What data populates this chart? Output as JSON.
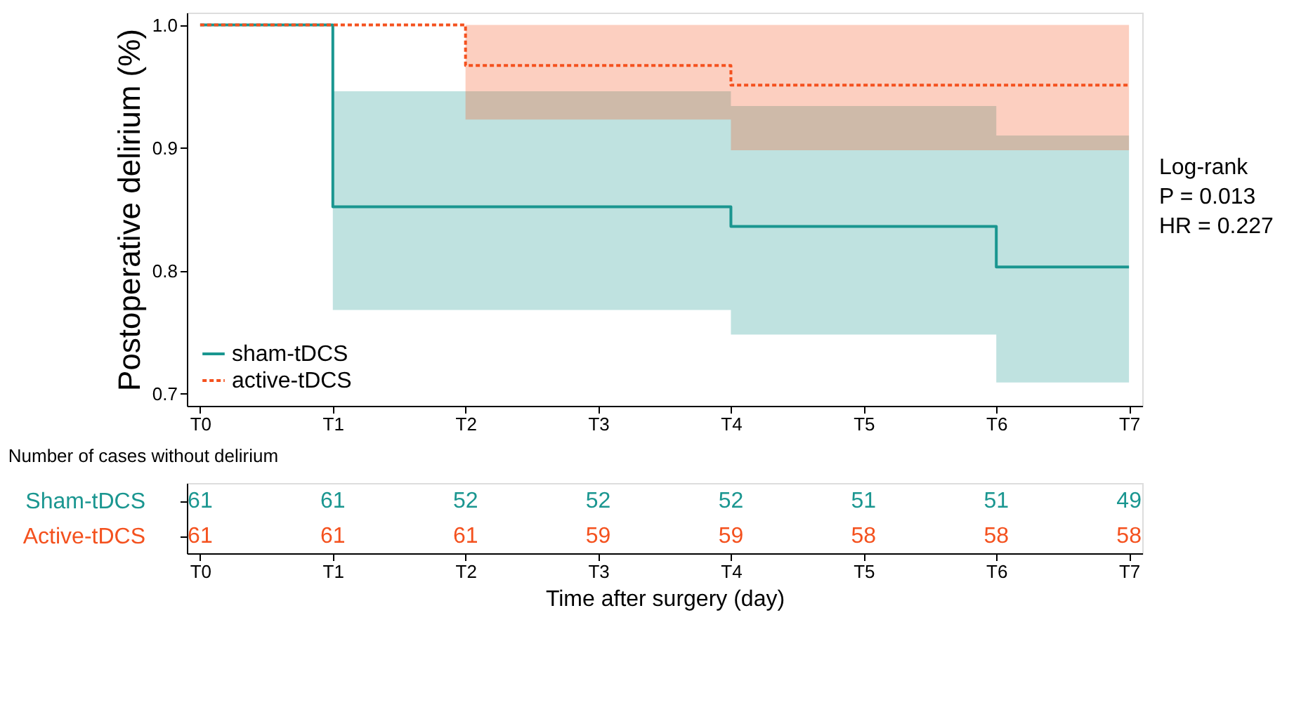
{
  "chart_data": [
    {
      "type": "step",
      "ylabel": "Postoperative delirium (%)",
      "categories": [
        "T0",
        "T1",
        "T2",
        "T3",
        "T4",
        "T5",
        "T6",
        "T7"
      ],
      "series": [
        {
          "name": "sham-tDCS",
          "color": "#1a9690",
          "line_style": "solid",
          "values": [
            1.0,
            0.852,
            0.852,
            0.852,
            0.836,
            0.836,
            0.803,
            0.803
          ],
          "lower": [
            1.0,
            0.768,
            0.768,
            0.768,
            0.748,
            0.748,
            0.709,
            0.709
          ],
          "upper": [
            1.0,
            0.946,
            0.946,
            0.946,
            0.934,
            0.934,
            0.91,
            0.91
          ]
        },
        {
          "name": "active-tDCS",
          "color": "#f4511e",
          "line_style": "dashed",
          "values": [
            1.0,
            1.0,
            0.967,
            0.967,
            0.951,
            0.951,
            0.951,
            0.951
          ],
          "lower": [
            1.0,
            1.0,
            0.923,
            0.923,
            0.898,
            0.898,
            0.898,
            0.898
          ],
          "upper": [
            1.0,
            1.0,
            1.0,
            1.0,
            1.0,
            1.0,
            1.0,
            1.0
          ]
        }
      ],
      "ylim": [
        0.69,
        1.01
      ],
      "yticks": [
        {
          "value": 0.7,
          "label": "0.7"
        },
        {
          "value": 0.8,
          "label": "0.8"
        },
        {
          "value": 0.9,
          "label": "0.9"
        },
        {
          "value": 1.0,
          "label": "1.0"
        }
      ],
      "annotations": [
        "Log-rank",
        "P = 0.013",
        "HR = 0.227"
      ],
      "legend": "bottom left",
      "grid": false,
      "marker": "none"
    },
    {
      "type": "other",
      "title": "Number of cases without delirium",
      "xlabel": "Time after surgery (day)",
      "categories": [
        "T0",
        "T1",
        "T2",
        "T3",
        "T4",
        "T5",
        "T6",
        "T7"
      ],
      "series": [
        {
          "name": "Sham-tDCS",
          "color": "#1a9690",
          "values": [
            61,
            61,
            52,
            52,
            52,
            51,
            51,
            49
          ]
        },
        {
          "name": "Active-tDCS",
          "color": "#f4511e",
          "values": [
            61,
            61,
            61,
            59,
            59,
            58,
            58,
            58
          ]
        }
      ],
      "data_labels": true
    }
  ]
}
